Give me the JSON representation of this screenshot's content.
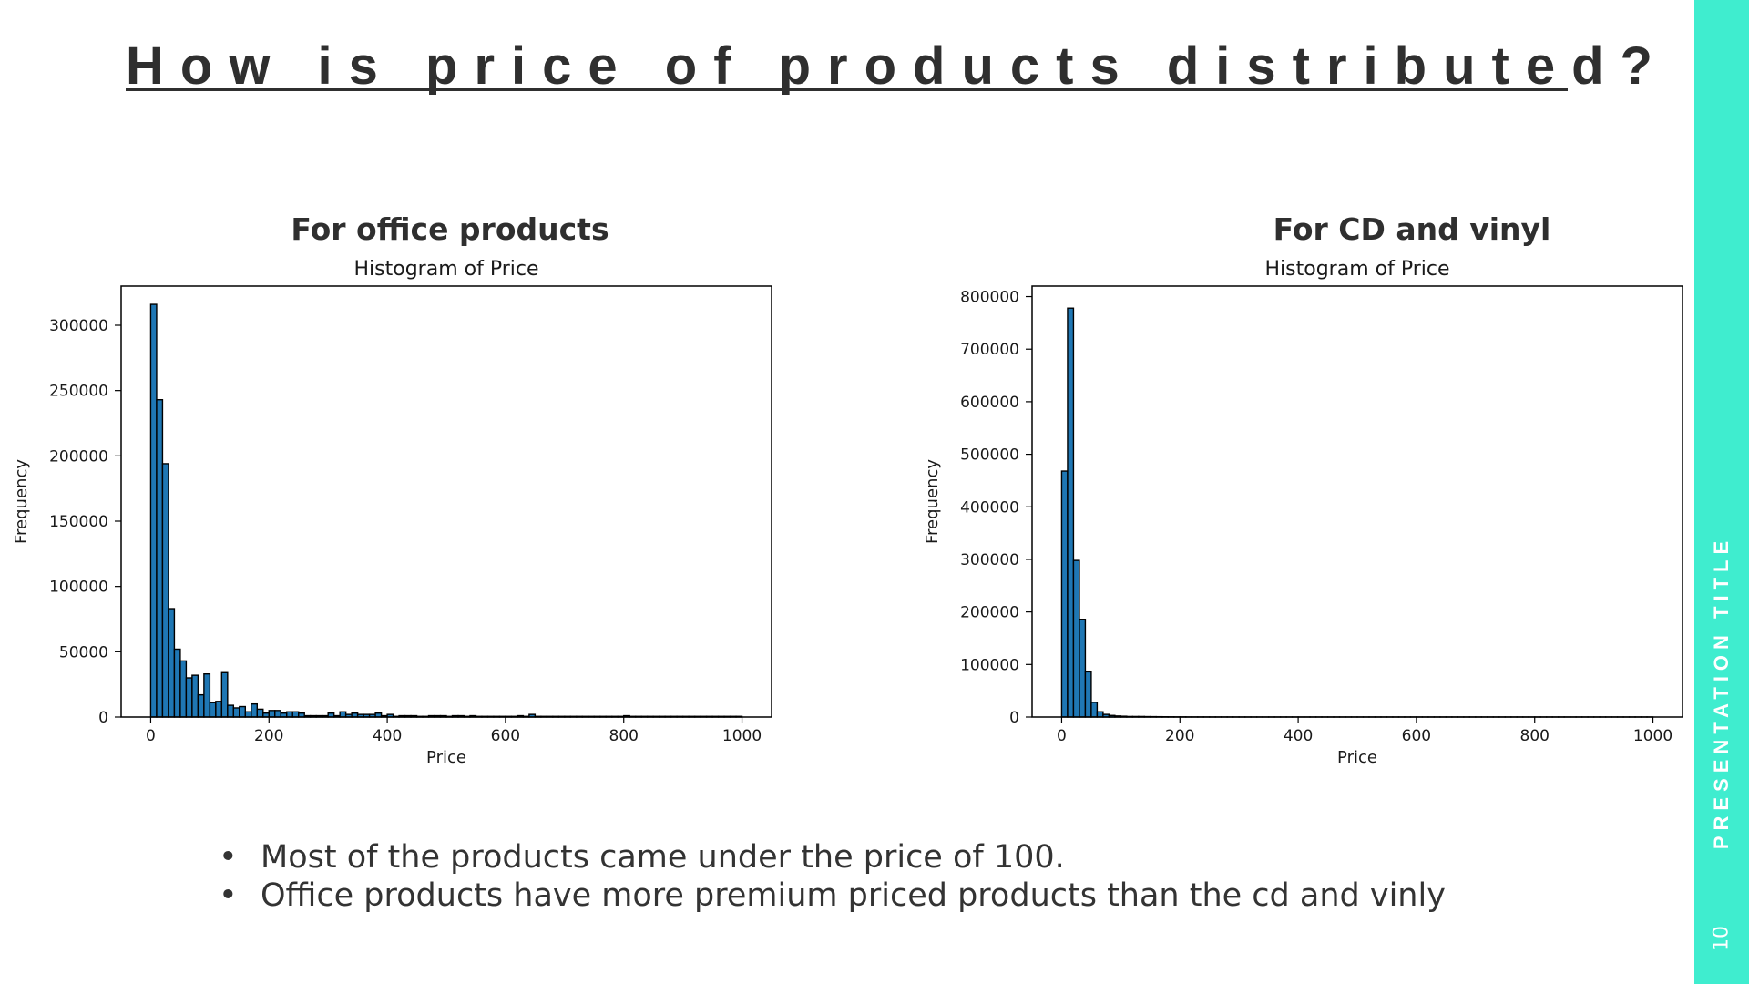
{
  "slide": {
    "title": "How is price of products distributed?",
    "bullets": [
      "Most of the products came under the price of 100.",
      "Office products have more premium priced products than the cd and vinly"
    ],
    "sidebar_title": "PRESENTATION TITLE",
    "page_number": "10",
    "accent_color": "#3fedcf"
  },
  "chart_data": [
    {
      "type": "bar",
      "heading": "For office products",
      "title": "Histogram of Price",
      "xlabel": "Price",
      "ylabel": "Frequency",
      "xlim": [
        -50,
        1050
      ],
      "ylim": [
        0,
        330000
      ],
      "xticks": [
        0,
        200,
        400,
        600,
        800,
        1000
      ],
      "yticks": [
        0,
        50000,
        100000,
        150000,
        200000,
        250000,
        300000
      ],
      "bar_color": "#1f77b4",
      "edge_color": "#000000",
      "bin_start": 0,
      "bin_width": 10,
      "values": [
        316000,
        243000,
        194000,
        83000,
        52000,
        43000,
        30000,
        32000,
        17000,
        33000,
        11000,
        12000,
        34000,
        9000,
        7000,
        8000,
        4000,
        10000,
        6000,
        3000,
        5000,
        5000,
        3000,
        4000,
        4000,
        3000,
        1000,
        1000,
        1000,
        1000,
        3000,
        1000,
        4000,
        2000,
        3000,
        2000,
        2000,
        2000,
        3000,
        1000,
        2000,
        500,
        1000,
        1000,
        1000,
        500,
        500,
        1000,
        1000,
        1000,
        500,
        1000,
        1000,
        500,
        1000,
        500,
        500,
        500,
        500,
        500,
        500,
        500,
        1000,
        500,
        2000,
        500,
        500,
        500,
        500,
        500,
        500,
        500,
        500,
        500,
        500,
        500,
        500,
        500,
        500,
        500,
        1000,
        500,
        500,
        500,
        500,
        500,
        500,
        500,
        500,
        500,
        500,
        500,
        500,
        500,
        500,
        500,
        500,
        500,
        500,
        500
      ]
    },
    {
      "type": "bar",
      "heading": "For CD and vinyl",
      "title": "Histogram of Price",
      "xlabel": "Price",
      "ylabel": "Frequency",
      "xlim": [
        -50,
        1050
      ],
      "ylim": [
        0,
        820000
      ],
      "xticks": [
        0,
        200,
        400,
        600,
        800,
        1000
      ],
      "yticks": [
        0,
        100000,
        200000,
        300000,
        400000,
        500000,
        600000,
        700000,
        800000
      ],
      "bar_color": "#1f77b4",
      "edge_color": "#000000",
      "bin_start": 0,
      "bin_width": 10,
      "values": [
        468000,
        778000,
        298000,
        186000,
        86000,
        28000,
        10000,
        5000,
        3000,
        2000,
        1500,
        1000,
        1000,
        1000,
        800,
        700,
        600,
        500,
        400,
        300,
        300,
        200,
        200,
        200,
        200,
        150,
        150,
        150,
        150,
        150,
        100,
        100,
        100,
        100,
        100,
        100,
        100,
        100,
        100,
        100,
        100,
        100,
        100,
        100,
        100,
        100,
        100,
        100,
        100,
        100,
        100,
        100,
        100,
        100,
        100,
        100,
        100,
        100,
        100,
        100,
        100,
        100,
        100,
        100,
        100,
        100,
        100,
        100,
        100,
        100,
        100,
        100,
        100,
        100,
        100,
        100,
        100,
        100,
        100,
        100,
        100,
        100,
        100,
        100,
        100,
        100,
        100,
        100,
        100,
        100,
        100,
        100,
        100,
        100,
        100,
        100,
        100,
        100,
        100,
        100
      ]
    }
  ]
}
